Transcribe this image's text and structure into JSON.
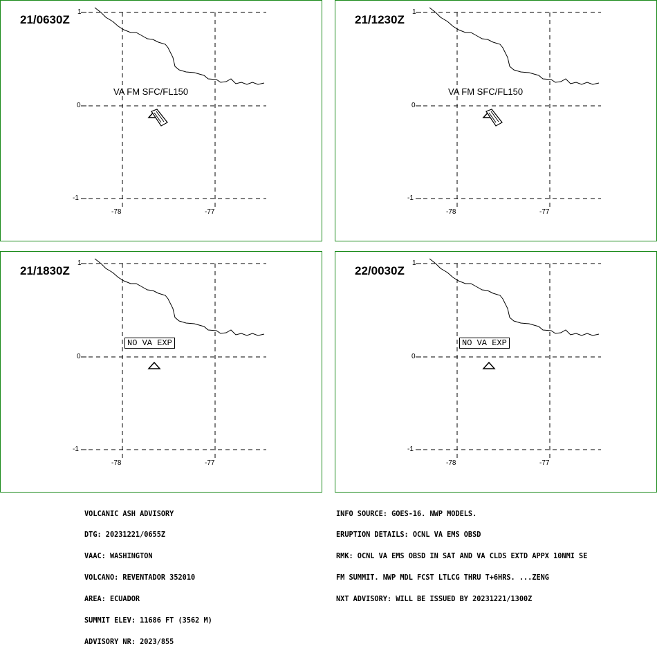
{
  "panels": [
    {
      "time": "21/0630Z",
      "label": "VA FM SFC/FL150",
      "label_boxed": false,
      "ash_cloud": true
    },
    {
      "time": "21/1230Z",
      "label": "VA FM SFC/FL150",
      "label_boxed": false,
      "ash_cloud": true
    },
    {
      "time": "21/1830Z",
      "label": "NO VA EXP",
      "label_boxed": true,
      "ash_cloud": false
    },
    {
      "time": "22/0030Z",
      "label": "NO VA EXP",
      "label_boxed": true,
      "ash_cloud": false
    }
  ],
  "axes": {
    "lat_labels": [
      "1",
      "0",
      "-1"
    ],
    "lon_labels": [
      "-78",
      "-77"
    ]
  },
  "colors": {
    "panel_border": "#1a8a1a",
    "lines": "#000000"
  },
  "advisory_left": [
    "VOLCANIC ASH ADVISORY",
    "DTG: 20231221/0655Z",
    "VAAC: WASHINGTON",
    "VOLCANO: REVENTADOR 352010",
    "AREA: ECUADOR",
    "SUMMIT ELEV: 11686 FT (3562 M)",
    "ADVISORY NR: 2023/855"
  ],
  "advisory_right": [
    "INFO SOURCE: GOES-16. NWP MODELS.",
    "ERUPTION DETAILS: OCNL VA EMS OBSD",
    "RMK: OCNL VA EMS OBSD IN SAT AND VA CLDS EXTD APPX 10NMI SE",
    "FM SUMMIT. NWP MDL FCST LTLCG THRU T+6HRS. ...ZENG",
    "NXT ADVISORY: WILL BE ISSUED BY 20231221/1300Z"
  ]
}
